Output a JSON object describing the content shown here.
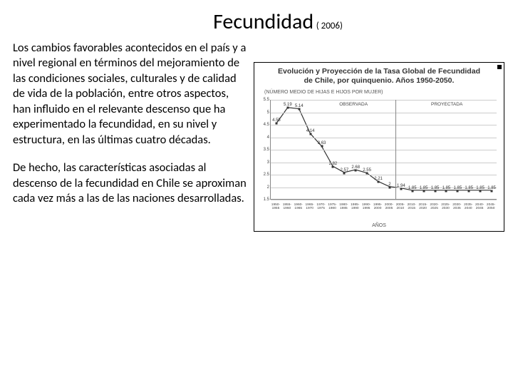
{
  "title": "Fecundidad",
  "title_year": "( 2006)",
  "paragraphs": [
    "Los cambios favorables acontecidos en el país y a nivel regional en términos del mejoramiento de las condiciones sociales, culturales y de calidad de vida de la población, entre otros aspectos, han influido en el relevante descenso que ha experimentado la fecundidad, en su nivel y estructura, en las últimas cuatro décadas.",
    "De hecho, las características asociadas al descenso de la fecundidad en Chile se aproximan cada vez más a las de las naciones desarrolladas."
  ],
  "chart": {
    "title_line1": "Evolución y Proyección de la Tasa Global de Fecundidad",
    "title_line2": "de Chile, por quinquenio. Años 1950-2050.",
    "subtitle": "(NÚMERO MEDIO DE HIJAS E HIJOS POR MUJER)",
    "group_observed": "OBSERVADA",
    "group_projected": "PROYECTADA",
    "axis_x_title": "AÑOS",
    "ylim": [
      1.5,
      5.5
    ],
    "yticks": [
      1.5,
      2,
      2.5,
      3,
      3.5,
      4,
      4.5,
      5,
      5.5
    ],
    "grid_color": "#cccccc",
    "line_color": "#333333",
    "categories": [
      "1950-1955",
      "1955-1960",
      "1960-1965",
      "1965-1970",
      "1970-1975",
      "1975-1980",
      "1980-1985",
      "1985-1990",
      "1990-1995",
      "1995-2000",
      "2000-2005",
      "2005-2010",
      "2010-2015",
      "2015-2020",
      "2020-2025",
      "2025-2030",
      "2030-2035",
      "2035-2040",
      "2040-2045",
      "2045-2050"
    ],
    "values": [
      4.55,
      5.19,
      5.14,
      4.14,
      3.63,
      2.82,
      2.57,
      2.68,
      2.55,
      2.21,
      2.0,
      1.94,
      1.85,
      1.85,
      1.85,
      1.85,
      1.85,
      1.85,
      1.85,
      1.85
    ],
    "divider_after_index": 10,
    "show_labels": [
      true,
      true,
      true,
      true,
      true,
      true,
      true,
      true,
      true,
      true,
      true,
      true,
      true,
      true,
      true,
      true,
      true,
      true,
      true,
      true
    ]
  },
  "colors": {
    "background": "#ffffff",
    "text": "#000000"
  }
}
